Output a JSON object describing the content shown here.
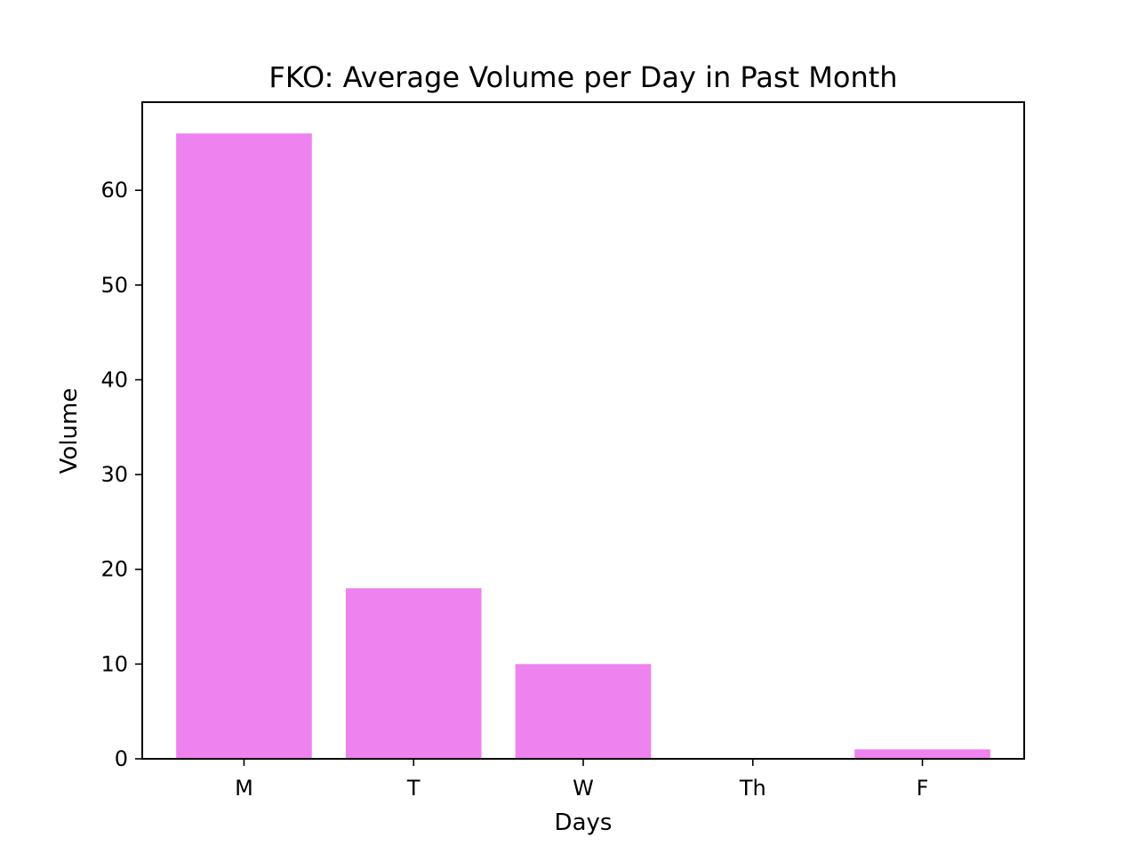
{
  "chart_data": {
    "type": "bar",
    "title": "FKO: Average Volume per Day in Past Month",
    "xlabel": "Days",
    "ylabel": "Volume",
    "categories": [
      "M",
      "T",
      "W",
      "Th",
      "F"
    ],
    "values": [
      66,
      18,
      10,
      0,
      1
    ],
    "ylim": [
      0,
      69.3
    ],
    "yticks": [
      0,
      10,
      20,
      30,
      40,
      50,
      60
    ],
    "bar_color": "#ee82ee",
    "grid": false,
    "legend": "none"
  }
}
